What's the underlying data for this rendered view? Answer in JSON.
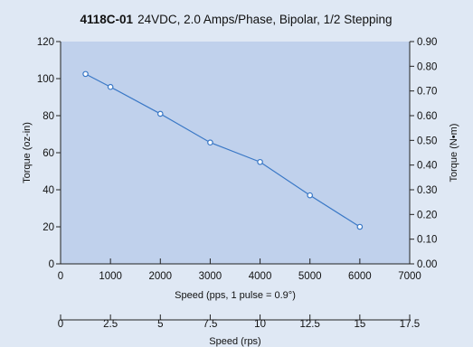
{
  "chart_data": {
    "type": "line",
    "title_model": "4118C-01",
    "title": "24VDC, 2.0 Amps/Phase, Bipolar, 1/2 Stepping",
    "xlabel": "Speed (pps, 1 pulse = 0.9°)",
    "ylabel": "Torque (oz-in)",
    "y2label": "Torque (N•m)",
    "x2label": "Speed (rps)",
    "xlim": [
      0,
      7000
    ],
    "ylim": [
      0,
      120
    ],
    "y2lim": [
      0,
      0.9
    ],
    "x2lim": [
      0,
      17.5
    ],
    "x_ticks": [
      "0",
      "1000",
      "2000",
      "3000",
      "4000",
      "5000",
      "6000",
      "7000"
    ],
    "y_ticks": [
      "0",
      "20",
      "40",
      "60",
      "80",
      "100",
      "120"
    ],
    "y2_ticks": [
      "0.00",
      "0.10",
      "0.20",
      "0.30",
      "0.40",
      "0.50",
      "0.60",
      "0.70",
      "0.80",
      "0.90"
    ],
    "x2_ticks": [
      "0",
      "2.5",
      "5",
      "7.5",
      "10",
      "12.5",
      "15",
      "17.5"
    ],
    "grid": false,
    "series": [
      {
        "x": [
          500,
          1000,
          2000,
          3000,
          4000,
          5000,
          6000
        ],
        "y": [
          102.5,
          95.5,
          81,
          65.5,
          55,
          37,
          20
        ]
      }
    ],
    "colors": {
      "plot_bg": "#c0d1ec",
      "page_bg": "#dfe8f4",
      "line": "#3a78c6",
      "marker_fill": "#ffffff"
    }
  }
}
